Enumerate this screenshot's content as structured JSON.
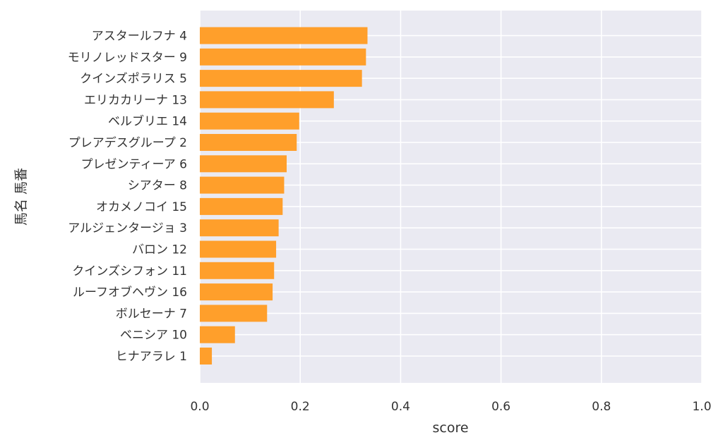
{
  "chart_data": {
    "type": "bar",
    "orientation": "horizontal",
    "xlabel": "score",
    "ylabel": "馬名 馬番",
    "xlim": [
      0.0,
      1.0
    ],
    "xticks": [
      "0.0",
      "0.2",
      "0.4",
      "0.6",
      "0.8",
      "1.0"
    ],
    "grid": true,
    "colors": {
      "bar": "#ff9f2b",
      "plot_bg": "#eaeaf2",
      "grid": "#ffffff"
    },
    "categories": [
      "アスタールフナ 4",
      "モリノレッドスター 9",
      "クインズポラリス 5",
      "エリカカリーナ 13",
      "ベルブリエ 14",
      "プレアデスグループ 2",
      "プレゼンティーア 6",
      "シアター 8",
      "オカメノコイ 15",
      "アルジェンタージョ 3",
      "バロン 12",
      "クインズシフォン 11",
      "ルーフオブヘヴン 16",
      "ボルセーナ 7",
      "ベニシア 10",
      "ヒナアラレ 1"
    ],
    "values": [
      0.334,
      0.331,
      0.323,
      0.267,
      0.198,
      0.193,
      0.173,
      0.168,
      0.165,
      0.157,
      0.152,
      0.148,
      0.145,
      0.134,
      0.07,
      0.024
    ]
  }
}
